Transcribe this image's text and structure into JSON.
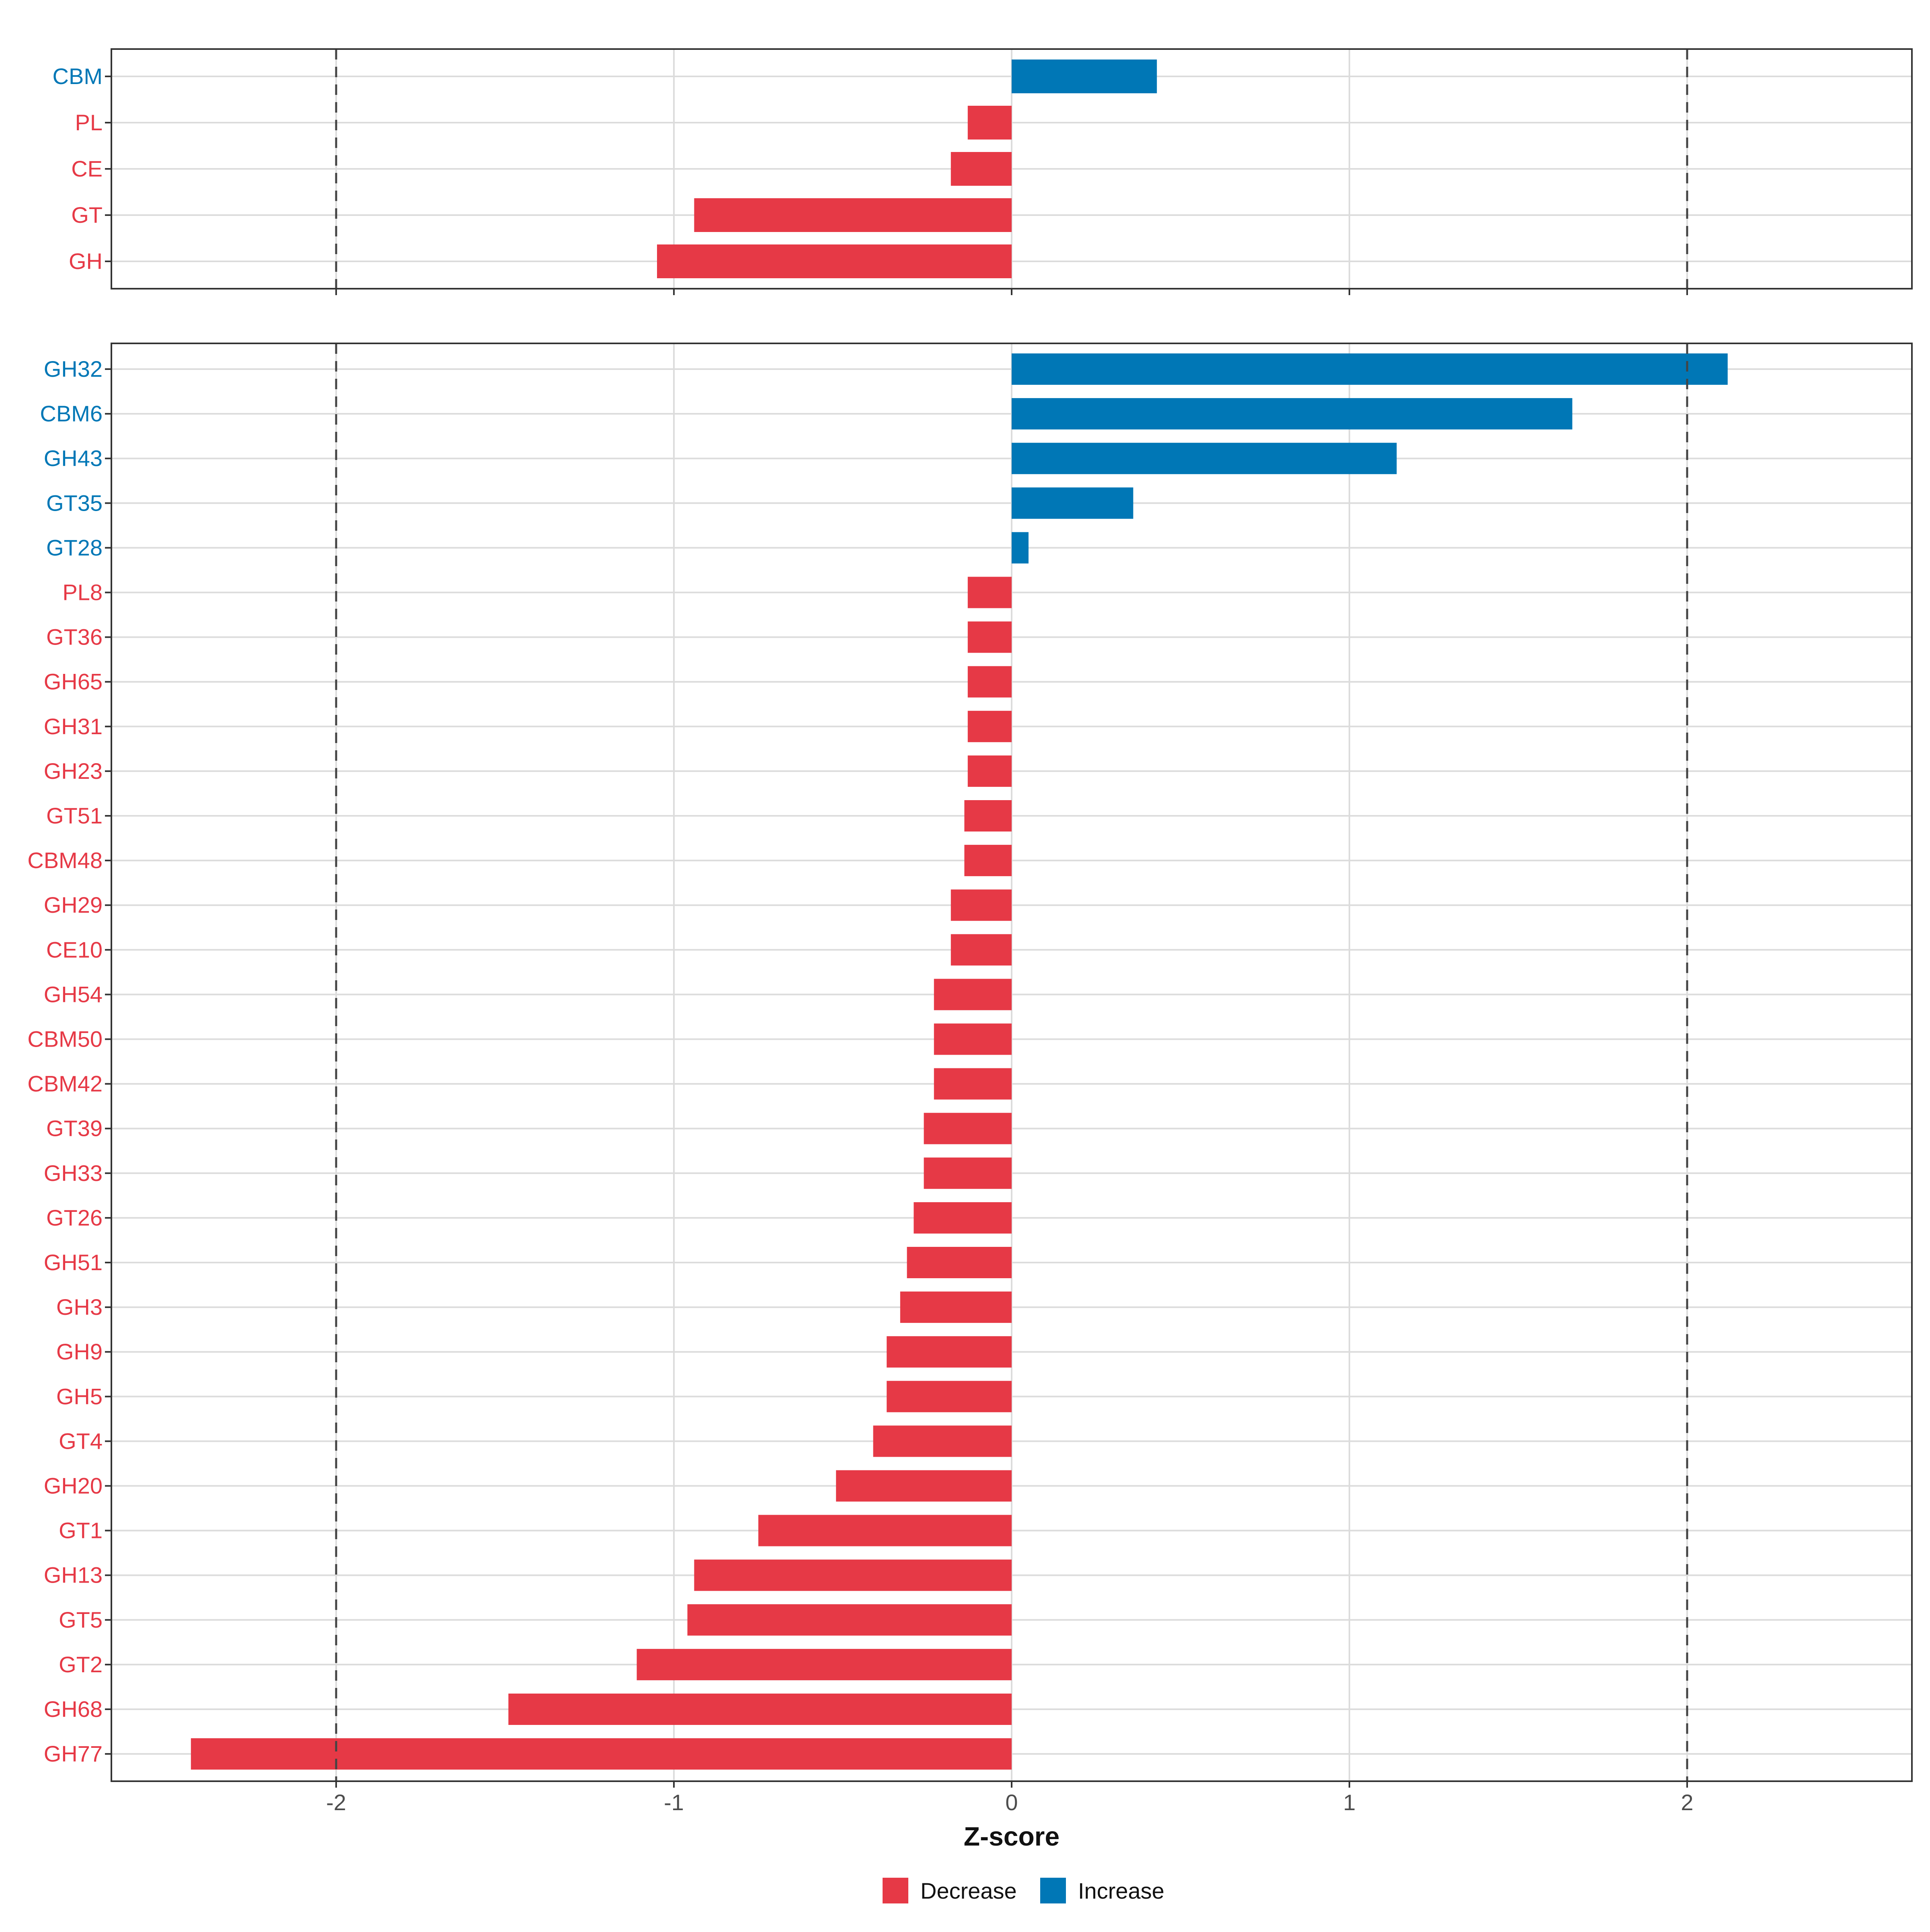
{
  "chart_data": {
    "type": "bar",
    "orientation": "horizontal",
    "xlabel": "Z-score",
    "xlim": [
      -2.67,
      2.67
    ],
    "x_ticks": [
      -2,
      -1,
      0,
      1,
      2
    ],
    "x_tick_labels": [
      "-2",
      "-1",
      "0",
      "1",
      "2"
    ],
    "threshold_lines": [
      -2,
      2
    ],
    "grid": true,
    "legend": {
      "placement": "bottom-center",
      "entries": [
        {
          "key": "Decrease",
          "label": "Decrease",
          "color": "#E63946"
        },
        {
          "key": "Increase",
          "label": "Increase",
          "color": "#0077B6"
        }
      ]
    },
    "panels": [
      {
        "name": "family-class",
        "categories": [
          "CBM",
          "PL",
          "CE",
          "GT",
          "GH"
        ],
        "values": [
          0.43,
          -0.13,
          -0.18,
          -0.94,
          -1.05
        ],
        "direction": [
          "Increase",
          "Decrease",
          "Decrease",
          "Decrease",
          "Decrease"
        ]
      },
      {
        "name": "family",
        "categories": [
          "GH32",
          "CBM6",
          "GH43",
          "GT35",
          "GT28",
          "PL8",
          "GT36",
          "GH65",
          "GH31",
          "GH23",
          "GT51",
          "CBM48",
          "GH29",
          "CE10",
          "GH54",
          "CBM50",
          "CBM42",
          "GT39",
          "GH33",
          "GT26",
          "GH51",
          "GH3",
          "GH9",
          "GH5",
          "GT4",
          "GH20",
          "GT1",
          "GH13",
          "GT5",
          "GT2",
          "GH68",
          "GH77"
        ],
        "values": [
          2.12,
          1.66,
          1.14,
          0.36,
          0.05,
          -0.13,
          -0.13,
          -0.13,
          -0.13,
          -0.13,
          -0.14,
          -0.14,
          -0.18,
          -0.18,
          -0.23,
          -0.23,
          -0.23,
          -0.26,
          -0.26,
          -0.29,
          -0.31,
          -0.33,
          -0.37,
          -0.37,
          -0.41,
          -0.52,
          -0.75,
          -0.94,
          -0.96,
          -1.11,
          -1.49,
          -2.43
        ],
        "direction": [
          "Increase",
          "Increase",
          "Increase",
          "Increase",
          "Increase",
          "Decrease",
          "Decrease",
          "Decrease",
          "Decrease",
          "Decrease",
          "Decrease",
          "Decrease",
          "Decrease",
          "Decrease",
          "Decrease",
          "Decrease",
          "Decrease",
          "Decrease",
          "Decrease",
          "Decrease",
          "Decrease",
          "Decrease",
          "Decrease",
          "Decrease",
          "Decrease",
          "Decrease",
          "Decrease",
          "Decrease",
          "Decrease",
          "Decrease",
          "Decrease",
          "Decrease"
        ]
      }
    ]
  }
}
